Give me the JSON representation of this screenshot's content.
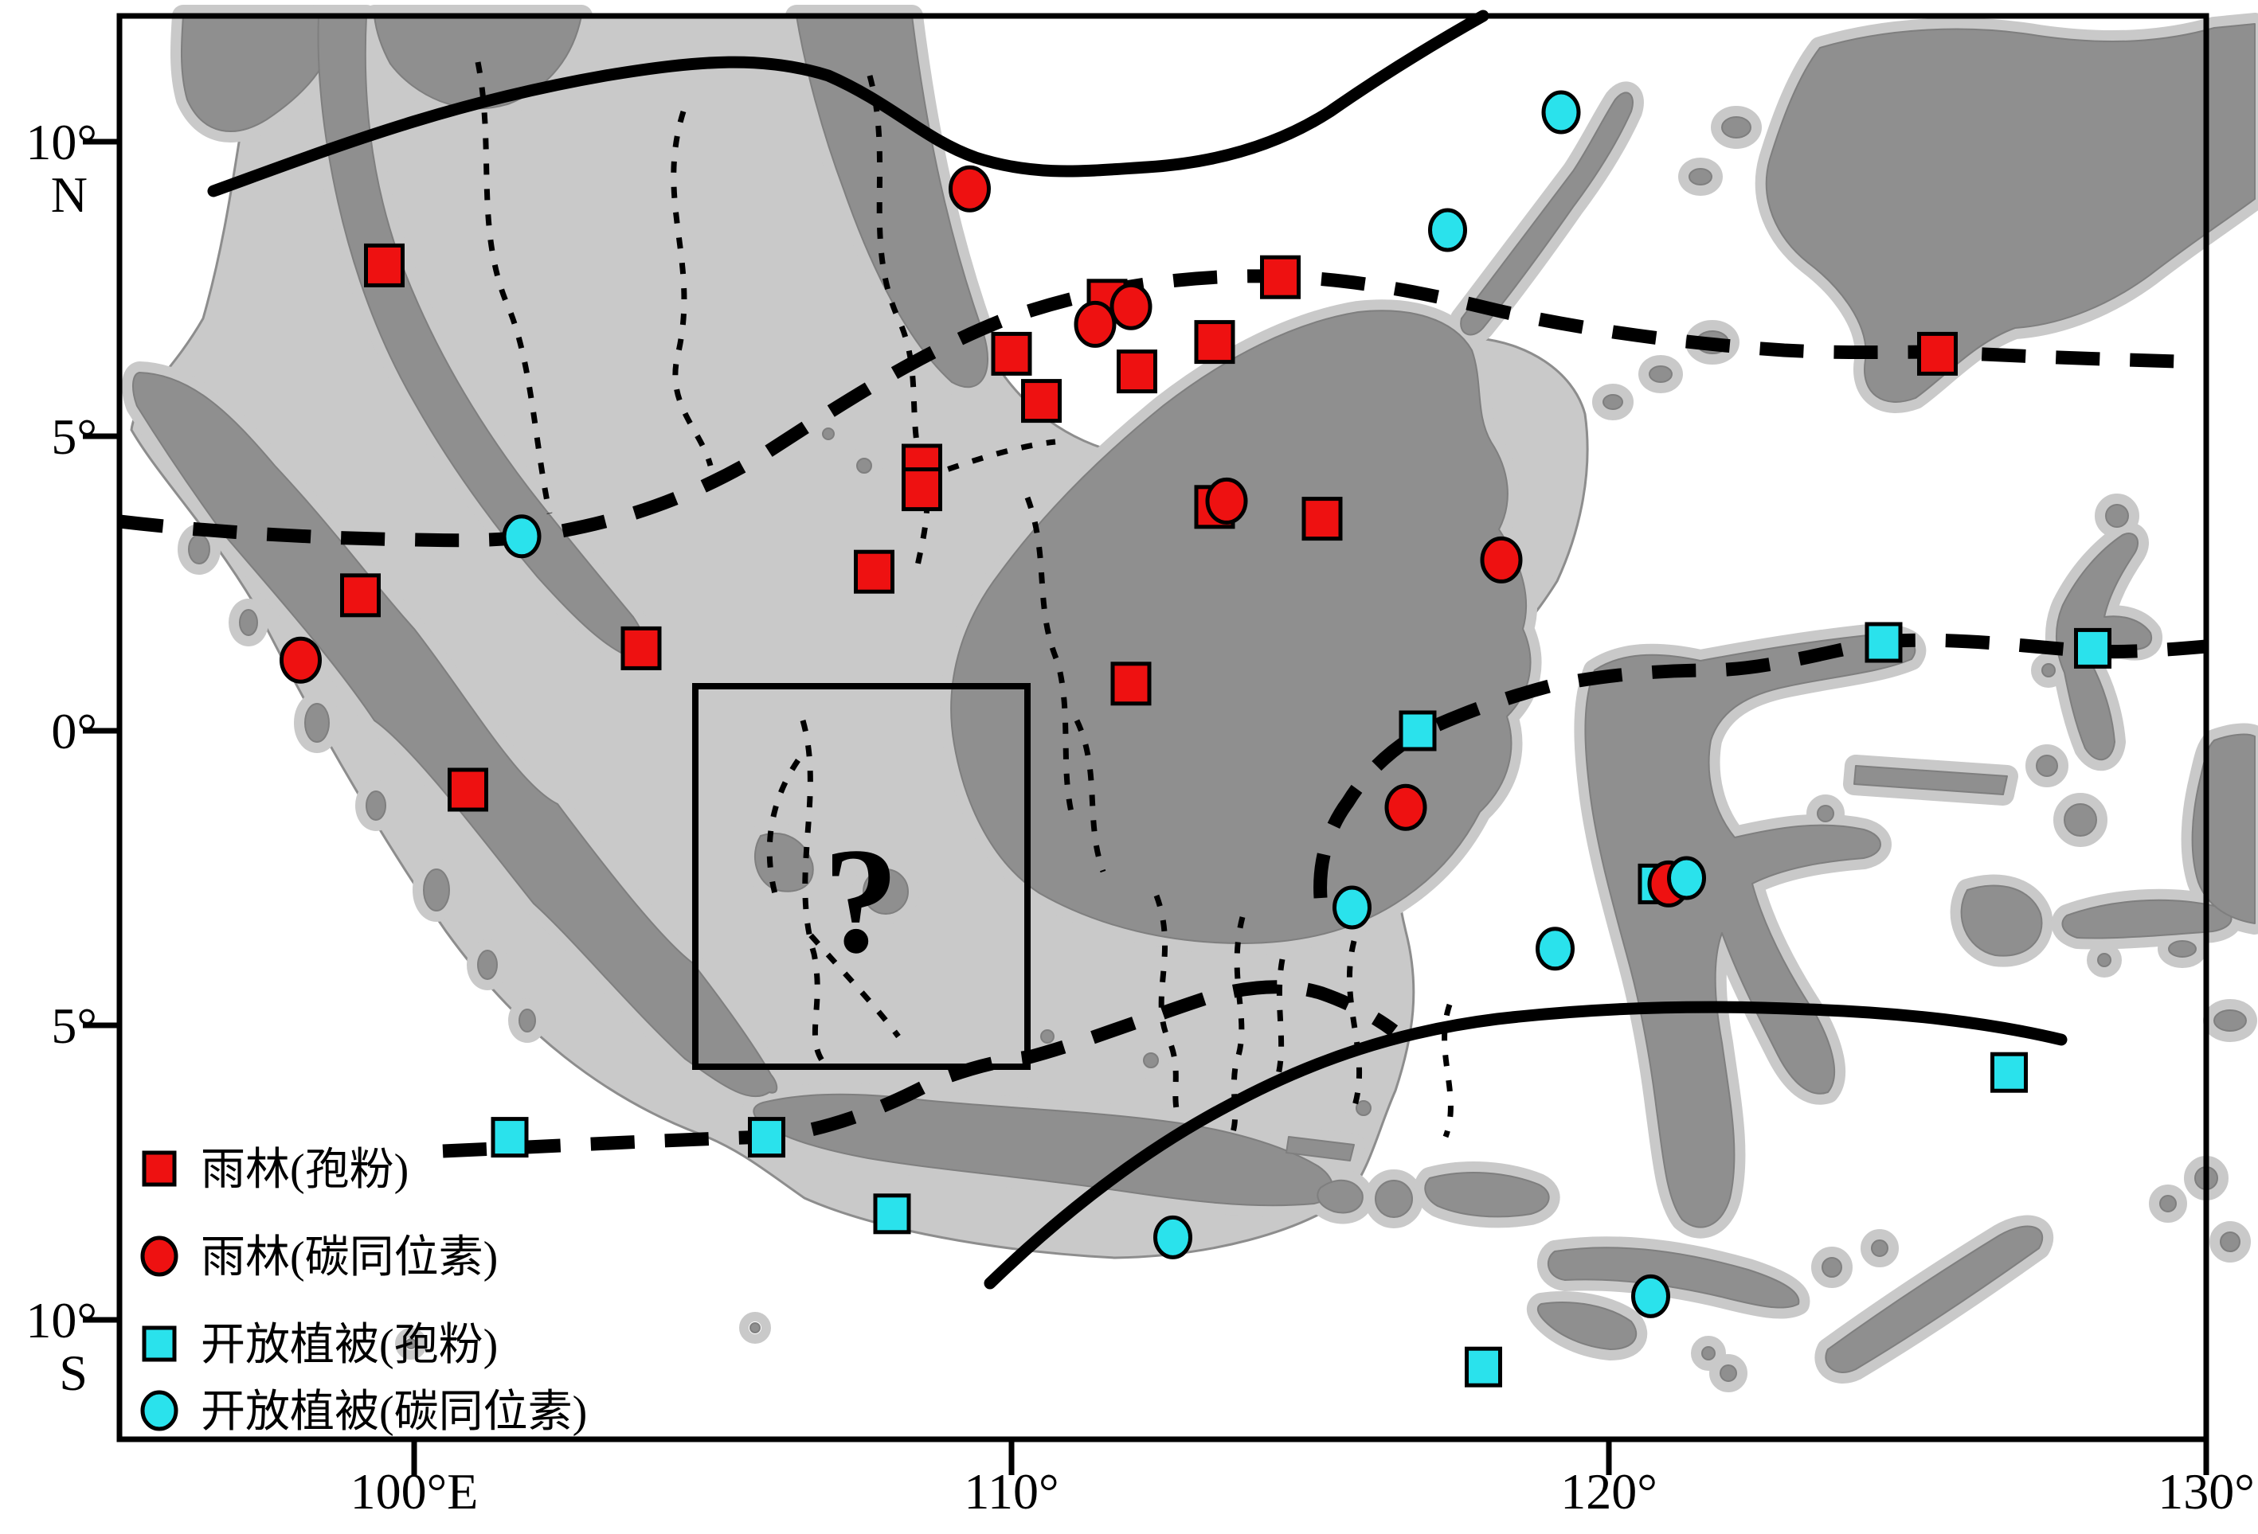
{
  "figure": {
    "question_mark": "?",
    "marker_colors": {
      "rainforest": "#ee1111",
      "open_vegetation": "#2ae2ec"
    },
    "map_colors": {
      "exposed_shelf": "#c9c9c9",
      "modern_land": "#8f8f8f"
    }
  },
  "axes": {
    "x_ticks": [
      {
        "label": "100°E",
        "lon": 100
      },
      {
        "label": "110°",
        "lon": 110
      },
      {
        "label": "120°",
        "lon": 120
      },
      {
        "label": "130°",
        "lon": 130
      }
    ],
    "y_ticks": [
      {
        "label": "10°",
        "sub": "N",
        "lat": 10
      },
      {
        "label": "5°",
        "sub": "",
        "lat": 5
      },
      {
        "label": "0°",
        "sub": "",
        "lat": 0
      },
      {
        "label": "5°",
        "sub": "",
        "lat": -5
      },
      {
        "label": "10°",
        "sub": "S",
        "lat": -10
      }
    ]
  },
  "legend": {
    "items": [
      {
        "label": "雨林(孢粉)",
        "marker": "square",
        "color": "#ee1111"
      },
      {
        "label": "雨林(碳同位素)",
        "marker": "circle",
        "color": "#ee1111"
      },
      {
        "label": "开放植被(孢粉)",
        "marker": "square",
        "color": "#2ae2ec"
      },
      {
        "label": "开放植被(碳同位素)",
        "marker": "circle",
        "color": "#2ae2ec"
      }
    ]
  },
  "chart_data": {
    "type": "scatter",
    "note_axis_ranges": {
      "lon": [
        95.1,
        130.0
      ],
      "lat": [
        -12.1,
        12.1
      ]
    },
    "series": [
      {
        "name": "雨林(孢粉)",
        "marker": "square",
        "color": "#ee1111",
        "points": [
          [
            99.5,
            7.9
          ],
          [
            108.5,
            4.5
          ],
          [
            108.5,
            4.1
          ],
          [
            107.7,
            2.7
          ],
          [
            110.0,
            6.4
          ],
          [
            110.5,
            5.6
          ],
          [
            111.6,
            7.3
          ],
          [
            112.1,
            6.1
          ],
          [
            113.4,
            6.6
          ],
          [
            114.5,
            7.7
          ],
          [
            113.4,
            3.8
          ],
          [
            115.2,
            3.6
          ],
          [
            112.0,
            0.8
          ],
          [
            99.1,
            2.3
          ],
          [
            103.8,
            1.4
          ],
          [
            100.9,
            -1.0
          ],
          [
            125.5,
            6.4
          ]
        ]
      },
      {
        "name": "雨林(碳同位素)",
        "marker": "circle",
        "color": "#ee1111",
        "points": [
          [
            109.3,
            9.2
          ],
          [
            111.4,
            6.9
          ],
          [
            112.0,
            7.2
          ],
          [
            113.6,
            3.9
          ],
          [
            118.2,
            2.9
          ],
          [
            116.6,
            -1.3
          ],
          [
            98.1,
            1.2
          ],
          [
            121.0,
            -2.6
          ]
        ]
      },
      {
        "name": "开放植被(孢粉)",
        "marker": "square",
        "color": "#2ae2ec",
        "points": [
          [
            116.8,
            0.0
          ],
          [
            124.6,
            1.5
          ],
          [
            128.1,
            1.4
          ],
          [
            120.8,
            -2.6
          ],
          [
            101.6,
            -6.9
          ],
          [
            105.9,
            -6.9
          ],
          [
            108.0,
            -8.2
          ],
          [
            117.9,
            -10.8
          ],
          [
            126.7,
            -5.8
          ]
        ]
      },
      {
        "name": "开放植被(碳同位素)",
        "marker": "circle",
        "color": "#2ae2ec",
        "points": [
          [
            101.8,
            3.3
          ],
          [
            119.2,
            10.5
          ],
          [
            117.3,
            8.5
          ],
          [
            115.7,
            -3.0
          ],
          [
            119.1,
            -3.7
          ],
          [
            121.3,
            -2.5
          ],
          [
            112.7,
            -8.6
          ],
          [
            120.7,
            -9.6
          ]
        ]
      }
    ]
  }
}
